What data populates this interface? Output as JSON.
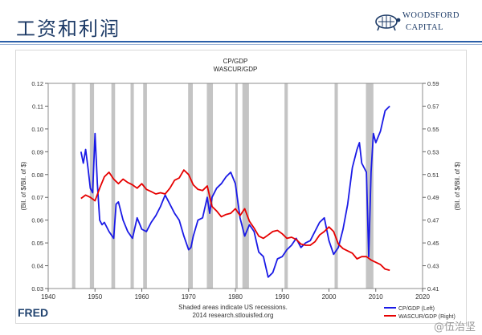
{
  "slide": {
    "title": "工资和利润",
    "logo_line1": "WOODSFORD",
    "logo_line2": "CAPITAL",
    "watermark": "@伍治坚",
    "accent_color": "#1c3a66"
  },
  "fred_logo": "FRED",
  "chart_data": {
    "type": "line",
    "title": "CP/GDP",
    "subtitle": "WASCUR/GDP",
    "ylabel_left": "(Bil. of $/Bil. of $)",
    "ylabel_right": "(Bil. of $/Bil. of $)",
    "footer_line1": "Shaded areas indicate US recessions.",
    "footer_line2": "2014 research.stlouisfed.org",
    "xlim": [
      1940,
      2020
    ],
    "ylim_left": [
      0.03,
      0.12
    ],
    "ylim_right": [
      0.41,
      0.59
    ],
    "x_ticks": [
      "1940",
      "1950",
      "1960",
      "1970",
      "1980",
      "1990",
      "2000",
      "2010",
      "2020"
    ],
    "y_left_ticks": [
      "0.03",
      "0.04",
      "0.05",
      "0.06",
      "0.07",
      "0.08",
      "0.09",
      "0.10",
      "0.11",
      "0.12"
    ],
    "y_right_ticks": [
      "0.41",
      "0.43",
      "0.45",
      "0.47",
      "0.49",
      "0.51",
      "0.53",
      "0.55",
      "0.57",
      "0.59"
    ],
    "recessions": [
      [
        1945.1,
        1945.8
      ],
      [
        1948.9,
        1949.8
      ],
      [
        1953.5,
        1954.3
      ],
      [
        1957.6,
        1958.3
      ],
      [
        1960.3,
        1961.1
      ],
      [
        1969.9,
        1970.9
      ],
      [
        1973.9,
        1975.2
      ],
      [
        1980.0,
        1980.5
      ],
      [
        1981.5,
        1982.9
      ],
      [
        1990.5,
        1991.2
      ],
      [
        2001.2,
        2001.9
      ],
      [
        2007.9,
        2009.5
      ]
    ],
    "legend_position": "bottom-right",
    "series": [
      {
        "name": "CP/GDP (Left)",
        "axis": "left",
        "color": "#1a1ae6",
        "x": [
          1947,
          1947.5,
          1948,
          1948.5,
          1949,
          1949.5,
          1950,
          1950.5,
          1951,
          1951.5,
          1952,
          1953,
          1954,
          1954.5,
          1955,
          1956,
          1957,
          1958,
          1959,
          1960,
          1961,
          1962,
          1963,
          1964,
          1965,
          1966,
          1967,
          1968,
          1969,
          1970,
          1970.5,
          1971,
          1972,
          1973,
          1974,
          1974.5,
          1975,
          1976,
          1977,
          1978,
          1979,
          1980,
          1981,
          1982,
          1983,
          1984,
          1985,
          1986,
          1987,
          1988,
          1989,
          1990,
          1991,
          1992,
          1993,
          1994,
          1995,
          1996,
          1997,
          1998,
          1999,
          2000,
          2001,
          2002,
          2003,
          2004,
          2005,
          2006,
          2006.5,
          2007,
          2008,
          2008.5,
          2009,
          2009.5,
          2010,
          2011,
          2012,
          2013
        ],
        "values": [
          0.09,
          0.085,
          0.091,
          0.083,
          0.074,
          0.072,
          0.098,
          0.076,
          0.06,
          0.058,
          0.059,
          0.055,
          0.052,
          0.067,
          0.068,
          0.06,
          0.055,
          0.052,
          0.061,
          0.056,
          0.055,
          0.059,
          0.062,
          0.066,
          0.071,
          0.067,
          0.063,
          0.06,
          0.053,
          0.047,
          0.048,
          0.053,
          0.06,
          0.061,
          0.07,
          0.063,
          0.07,
          0.074,
          0.076,
          0.079,
          0.081,
          0.076,
          0.061,
          0.053,
          0.058,
          0.055,
          0.046,
          0.044,
          0.035,
          0.037,
          0.043,
          0.044,
          0.047,
          0.049,
          0.052,
          0.048,
          0.05,
          0.051,
          0.055,
          0.059,
          0.061,
          0.051,
          0.045,
          0.048,
          0.056,
          0.067,
          0.083,
          0.091,
          0.094,
          0.085,
          0.081,
          0.044,
          0.081,
          0.098,
          0.094,
          0.099,
          0.108,
          0.11
        ]
      },
      {
        "name": "WASCUR/GDP (Right)",
        "axis": "right",
        "color": "#e60000",
        "x": [
          1947,
          1948,
          1949,
          1950,
          1951,
          1952,
          1953,
          1954,
          1955,
          1956,
          1957,
          1958,
          1959,
          1960,
          1961,
          1962,
          1963,
          1964,
          1965,
          1966,
          1967,
          1968,
          1969,
          1970,
          1971,
          1972,
          1973,
          1974,
          1975,
          1976,
          1977,
          1978,
          1979,
          1980,
          1981,
          1982,
          1983,
          1984,
          1985,
          1986,
          1987,
          1988,
          1989,
          1990,
          1991,
          1992,
          1993,
          1994,
          1995,
          1996,
          1997,
          1998,
          1999,
          2000,
          2001,
          2002,
          2003,
          2004,
          2005,
          2006,
          2007,
          2008,
          2009,
          2010,
          2011,
          2012,
          2013
        ],
        "values": [
          0.489,
          0.492,
          0.49,
          0.487,
          0.498,
          0.508,
          0.512,
          0.506,
          0.502,
          0.506,
          0.503,
          0.501,
          0.498,
          0.502,
          0.497,
          0.495,
          0.493,
          0.494,
          0.493,
          0.498,
          0.505,
          0.507,
          0.514,
          0.51,
          0.501,
          0.497,
          0.496,
          0.5,
          0.482,
          0.478,
          0.473,
          0.475,
          0.476,
          0.48,
          0.474,
          0.48,
          0.469,
          0.463,
          0.456,
          0.454,
          0.457,
          0.46,
          0.461,
          0.458,
          0.454,
          0.455,
          0.453,
          0.449,
          0.448,
          0.448,
          0.451,
          0.457,
          0.46,
          0.464,
          0.46,
          0.449,
          0.445,
          0.443,
          0.441,
          0.436,
          0.438,
          0.438,
          0.435,
          0.433,
          0.431,
          0.427,
          0.426
        ]
      }
    ]
  }
}
